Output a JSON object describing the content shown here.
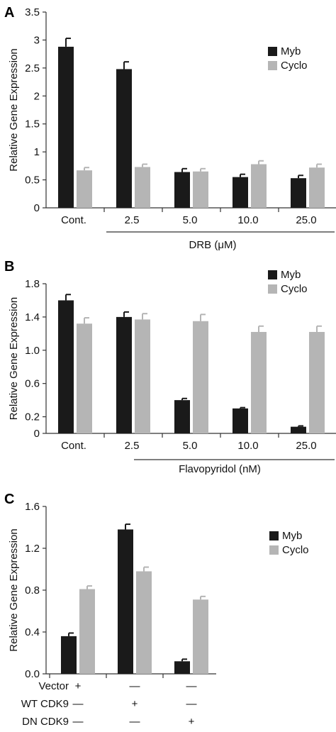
{
  "colors": {
    "myb": "#1a1a1a",
    "cyclo": "#b5b5b5",
    "axis": "#333333"
  },
  "chart_data": [
    {
      "type": "bar",
      "panel_label": "A",
      "categories": [
        "Cont.",
        "2.5",
        "5.0",
        "10.0",
        "25.0"
      ],
      "series": [
        {
          "name": "Myb",
          "values": [
            2.88,
            2.48,
            0.64,
            0.55,
            0.53
          ],
          "errors": [
            0.15,
            0.13,
            0.06,
            0.05,
            0.05
          ]
        },
        {
          "name": "Cyclo",
          "values": [
            0.67,
            0.73,
            0.65,
            0.78,
            0.72
          ],
          "errors": [
            0.05,
            0.05,
            0.05,
            0.06,
            0.06
          ]
        }
      ],
      "ylabel": "Relative Gene Expression",
      "ylim": [
        0,
        3.5
      ],
      "yticks": [
        0,
        0.5,
        1,
        1.5,
        2,
        2.5,
        3,
        3.5
      ],
      "ytick_labels": [
        "0",
        "0.5",
        "1",
        "1.5",
        "2",
        "2.5",
        "3",
        "3.5"
      ],
      "group_label": "DRB (μM)",
      "legend": [
        "Myb",
        "Cyclo"
      ]
    },
    {
      "type": "bar",
      "panel_label": "B",
      "categories": [
        "Cont.",
        "2.5",
        "5.0",
        "10.0",
        "25.0"
      ],
      "series": [
        {
          "name": "Myb",
          "values": [
            1.6,
            1.4,
            0.4,
            0.3,
            0.08
          ],
          "errors": [
            0.07,
            0.06,
            0.02,
            0.01,
            0.01
          ]
        },
        {
          "name": "Cyclo",
          "values": [
            1.32,
            1.37,
            1.35,
            1.22,
            1.22
          ],
          "errors": [
            0.07,
            0.07,
            0.08,
            0.07,
            0.07
          ]
        }
      ],
      "ylabel": "Relative Gene Expression",
      "ylim": [
        0,
        1.8
      ],
      "yticks": [
        0,
        0.2,
        0.6,
        1.0,
        1.4,
        1.8
      ],
      "ytick_labels": [
        "0",
        "0.2",
        "0.6",
        "1.0",
        "1.4",
        "1.8"
      ],
      "group_label": "Flavopyridol (nM)",
      "legend": [
        "Myb",
        "Cyclo"
      ]
    },
    {
      "type": "bar",
      "panel_label": "C",
      "categories": [
        "",
        "",
        ""
      ],
      "series": [
        {
          "name": "Myb",
          "values": [
            0.36,
            1.38,
            0.12
          ],
          "errors": [
            0.03,
            0.05,
            0.02
          ]
        },
        {
          "name": "Cyclo",
          "values": [
            0.81,
            0.98,
            0.71
          ],
          "errors": [
            0.03,
            0.04,
            0.03
          ]
        }
      ],
      "ylabel": "Relative Gene Expression",
      "ylim": [
        0,
        1.6
      ],
      "yticks": [
        0,
        0.4,
        0.8,
        1.2,
        1.6
      ],
      "ytick_labels": [
        "0.0",
        "0.4",
        "0.8",
        "1.2",
        "1.6"
      ],
      "legend": [
        "Myb",
        "Cyclo"
      ],
      "condition_rows": [
        {
          "label": "Vector",
          "marks": [
            "+",
            "—",
            "—"
          ]
        },
        {
          "label": "WT CDK9",
          "marks": [
            "—",
            "+",
            "—"
          ]
        },
        {
          "label": "DN CDK9",
          "marks": [
            "—",
            "—",
            "+"
          ]
        }
      ]
    }
  ]
}
